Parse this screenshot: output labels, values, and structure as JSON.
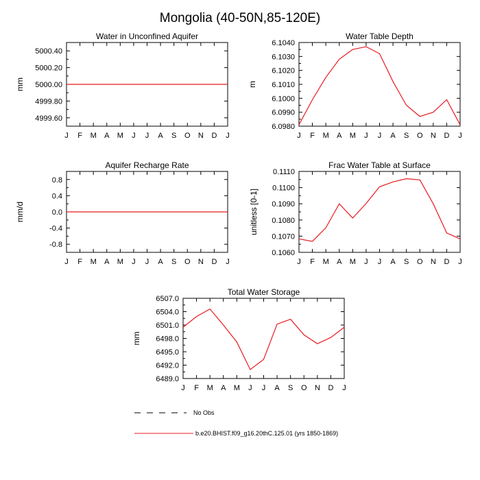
{
  "title": "Mongolia (40-50N,85-120E)",
  "colors": {
    "model": "#e8191e",
    "obs": "#000000",
    "axis": "#000000"
  },
  "legend": {
    "entries": [
      {
        "label": "No Obs",
        "style": "dashed",
        "color": "#000000"
      },
      {
        "label": "b.e20.BHIST.f09_g16.20thC.125.01 (yrs 1850-1869)",
        "style": "solid",
        "color": "#e8191e"
      }
    ]
  },
  "chart_data": [
    {
      "type": "line",
      "title": "Water in Unconfined Aquifer",
      "ylabel": "mm",
      "xticks": [
        "J",
        "F",
        "M",
        "A",
        "M",
        "J",
        "J",
        "A",
        "S",
        "O",
        "N",
        "D",
        "J"
      ],
      "ylim": [
        4999.5,
        5000.5
      ],
      "yticks": [
        4999.6,
        4999.8,
        5000.0,
        5000.2,
        5000.4
      ],
      "ytick_labels": [
        "4999.60",
        "4999.80",
        "5000.00",
        "5000.20",
        "5000.40"
      ],
      "series": [
        {
          "values": [
            5000,
            5000,
            5000,
            5000,
            5000,
            5000,
            5000,
            5000,
            5000,
            5000,
            5000,
            5000,
            5000
          ]
        }
      ]
    },
    {
      "type": "line",
      "title": "Water Table Depth",
      "ylabel": "m",
      "xticks": [
        "J",
        "F",
        "M",
        "A",
        "M",
        "J",
        "J",
        "A",
        "S",
        "O",
        "N",
        "D",
        "J"
      ],
      "ylim": [
        6.098,
        6.104
      ],
      "yticks": [
        6.098,
        6.099,
        6.1,
        6.101,
        6.102,
        6.103,
        6.104
      ],
      "ytick_labels": [
        "6.0980",
        "6.0990",
        "6.1000",
        "6.1010",
        "6.1020",
        "6.1030",
        "6.1040"
      ],
      "series": [
        {
          "values": [
            6.0981,
            6.0999,
            6.1015,
            6.1028,
            6.1035,
            6.1037,
            6.1032,
            6.1012,
            6.0995,
            6.0987,
            6.099,
            6.0999,
            6.0981
          ]
        }
      ]
    },
    {
      "type": "line",
      "title": "Aquifer Recharge Rate",
      "ylabel": "mm/d",
      "xticks": [
        "J",
        "F",
        "M",
        "A",
        "M",
        "J",
        "J",
        "A",
        "S",
        "O",
        "N",
        "D",
        "J"
      ],
      "ylim": [
        -1.0,
        1.0
      ],
      "yticks": [
        -0.8,
        -0.4,
        0.0,
        0.4,
        0.8
      ],
      "ytick_labels": [
        "-0.8",
        "-0.4",
        "0.0",
        "0.4",
        "0.8"
      ],
      "series": [
        {
          "values": [
            0,
            0,
            0,
            0,
            0,
            0,
            0,
            0,
            0,
            0,
            0,
            0,
            0
          ]
        }
      ]
    },
    {
      "type": "line",
      "title": "Frac Water Table at Surface",
      "ylabel": "unitless [0-1]",
      "xticks": [
        "J",
        "F",
        "M",
        "A",
        "M",
        "J",
        "J",
        "A",
        "S",
        "O",
        "N",
        "D",
        "J"
      ],
      "ylim": [
        0.106,
        0.111
      ],
      "yticks": [
        0.106,
        0.107,
        0.108,
        0.109,
        0.11,
        0.111
      ],
      "ytick_labels": [
        "0.1060",
        "0.1070",
        "0.1080",
        "0.1090",
        "0.1100",
        "0.1110"
      ],
      "series": [
        {
          "values": [
            0.10683,
            0.10668,
            0.10752,
            0.109,
            0.10812,
            0.10902,
            0.11005,
            0.11035,
            0.11055,
            0.11048,
            0.109,
            0.1072,
            0.10683
          ]
        }
      ]
    },
    {
      "type": "line",
      "title": "Total Water Storage",
      "ylabel": "mm",
      "xticks": [
        "J",
        "F",
        "M",
        "A",
        "M",
        "J",
        "J",
        "A",
        "S",
        "O",
        "N",
        "D",
        "J"
      ],
      "ylim": [
        6489.0,
        6507.0
      ],
      "yticks": [
        6489.0,
        6492.0,
        6495.0,
        6498.0,
        6501.0,
        6504.0,
        6507.0
      ],
      "ytick_labels": [
        "6489.0",
        "6492.0",
        "6495.0",
        "6498.0",
        "6501.0",
        "6504.0",
        "6507.0"
      ],
      "series": [
        {
          "values": [
            6500.5,
            6502.9,
            6504.6,
            6501.0,
            6497.2,
            6491.0,
            6493.3,
            6501.2,
            6502.3,
            6498.8,
            6496.8,
            6498.2,
            6500.5
          ]
        }
      ]
    }
  ]
}
